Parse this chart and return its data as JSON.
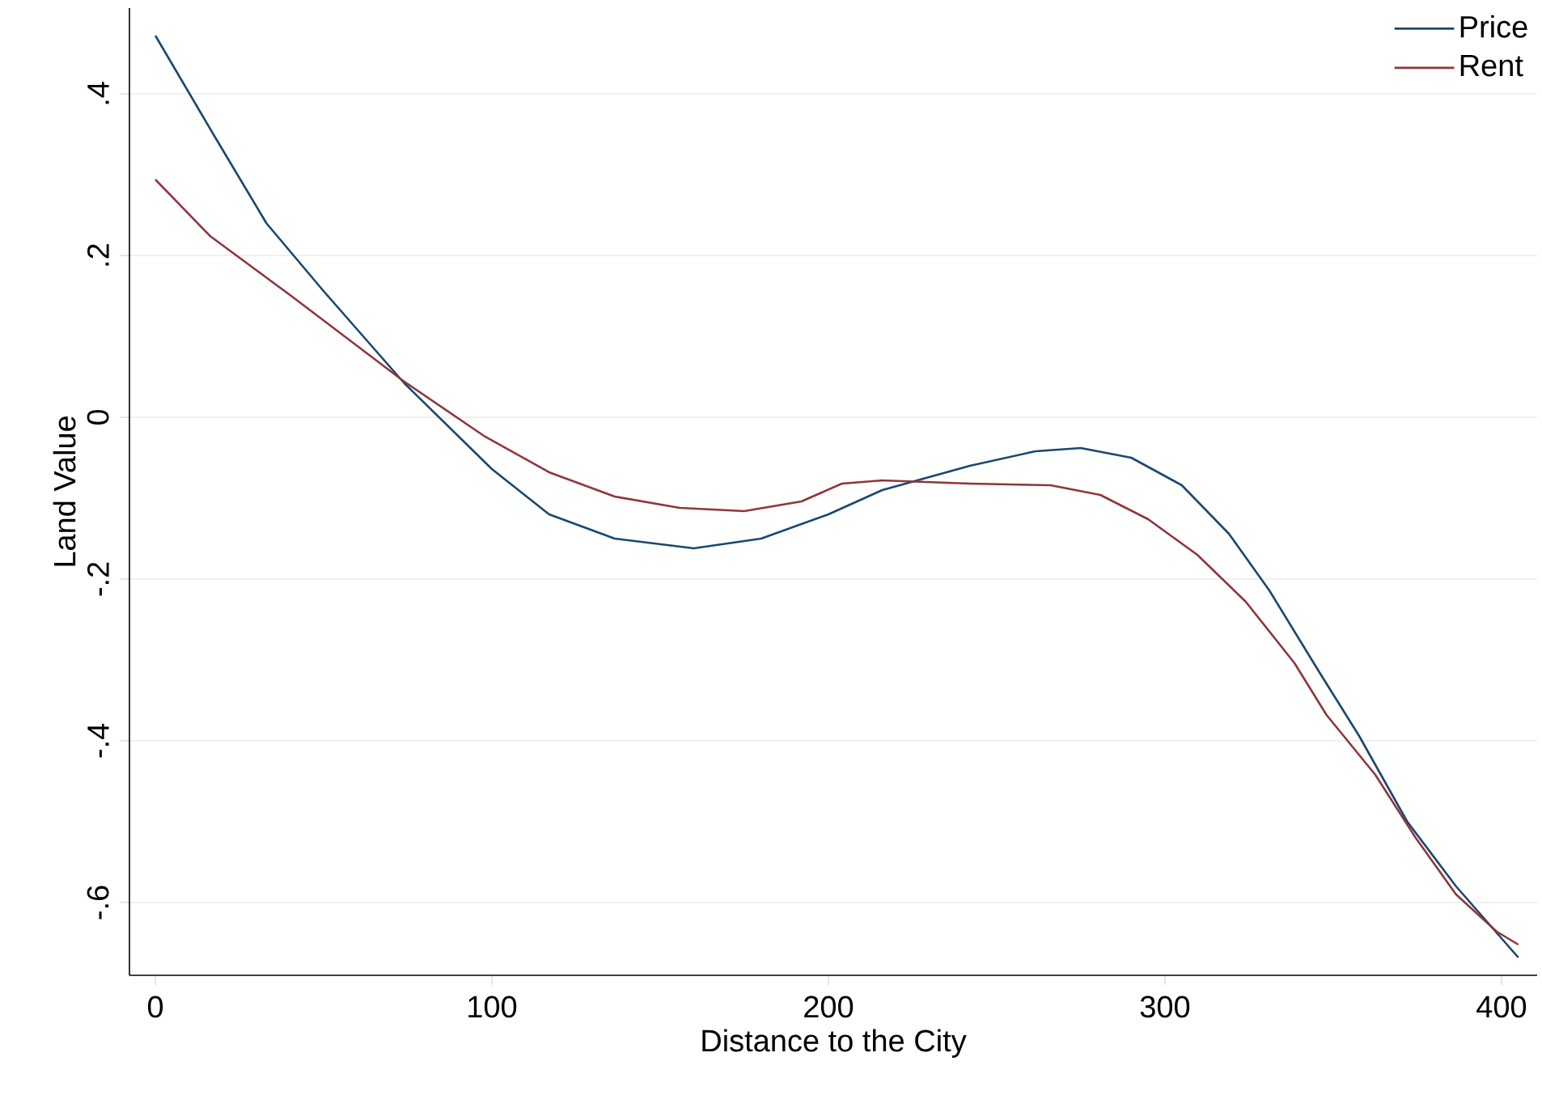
{
  "chart_data": {
    "type": "line",
    "xlabel": "Distance to the City",
    "ylabel": "Land Value",
    "xlim": [
      -7.7,
      410.6
    ],
    "ylim": [
      -0.69,
      0.506
    ],
    "xticks": [
      0,
      100,
      200,
      300,
      400
    ],
    "yticks": [
      {
        "value": -0.6,
        "label": "-.6"
      },
      {
        "value": -0.4,
        "label": "-.4"
      },
      {
        "value": -0.2,
        "label": "-.2"
      },
      {
        "value": 0,
        "label": "0"
      },
      {
        "value": 0.2,
        "label": ".2"
      },
      {
        "value": 0.4,
        "label": ".4"
      }
    ],
    "grid": "y",
    "legend": "top right",
    "series": [
      {
        "name": "Price",
        "color": "#1a476f",
        "x": [
          0,
          17.8,
          33,
          50,
          74,
          100,
          117,
          136.5,
          160,
          180,
          200,
          216,
          242,
          261.5,
          275,
          290,
          305,
          319,
          331,
          345.7,
          357.7,
          372,
          386.5,
          405
        ],
        "values": [
          0.472,
          0.346,
          0.24,
          0.156,
          0.042,
          -0.064,
          -0.12,
          -0.15,
          -0.162,
          -0.15,
          -0.12,
          -0.09,
          -0.06,
          -0.042,
          -0.038,
          -0.05,
          -0.084,
          -0.144,
          -0.214,
          -0.314,
          -0.394,
          -0.5,
          -0.58,
          -0.668
        ]
      },
      {
        "name": "Rent",
        "color": "#90353b",
        "x": [
          0,
          16.3,
          40.4,
          74,
          98,
          117,
          136.5,
          155.8,
          175,
          192,
          204,
          216,
          242,
          266,
          280.8,
          295,
          309.6,
          324,
          338.5,
          348,
          362.5,
          374.5,
          386.5,
          398.6,
          405
        ],
        "values": [
          0.294,
          0.224,
          0.15,
          0.044,
          -0.024,
          -0.068,
          -0.098,
          -0.112,
          -0.116,
          -0.104,
          -0.082,
          -0.078,
          -0.082,
          -0.084,
          -0.096,
          -0.126,
          -0.17,
          -0.228,
          -0.304,
          -0.368,
          -0.442,
          -0.52,
          -0.59,
          -0.636,
          -0.652
        ]
      }
    ]
  }
}
